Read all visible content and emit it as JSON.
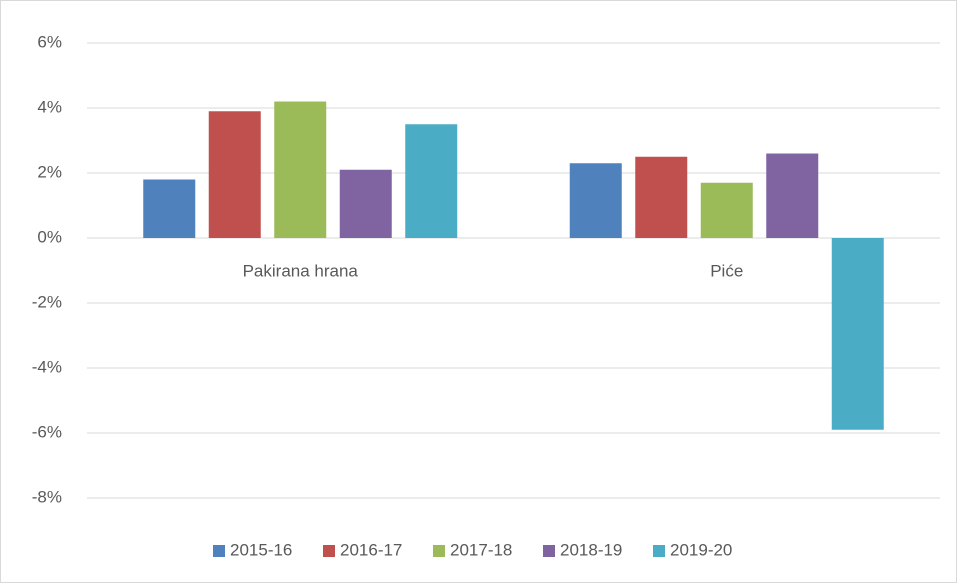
{
  "chart_data": {
    "type": "bar",
    "categories": [
      "Pakirana hrana",
      "Piće"
    ],
    "series": [
      {
        "name": "2015-16",
        "color": "#4f81bd",
        "values": [
          1.8,
          2.3
        ]
      },
      {
        "name": "2016-17",
        "color": "#c0504d",
        "values": [
          3.9,
          2.5
        ]
      },
      {
        "name": "2017-18",
        "color": "#9bbb59",
        "values": [
          4.2,
          1.7
        ]
      },
      {
        "name": "2018-19",
        "color": "#8064a2",
        "values": [
          2.1,
          2.6
        ]
      },
      {
        "name": "2019-20",
        "color": "#4bacc6",
        "values": [
          3.5,
          -5.9
        ]
      }
    ],
    "ylim": [
      -8,
      6
    ],
    "yticks": [
      {
        "value": -8,
        "label": "-8%"
      },
      {
        "value": -6,
        "label": "-6%"
      },
      {
        "value": -4,
        "label": "-4%"
      },
      {
        "value": -2,
        "label": "-2%"
      },
      {
        "value": 0,
        "label": "0%"
      },
      {
        "value": 2,
        "label": "2%"
      },
      {
        "value": 4,
        "label": "4%"
      },
      {
        "value": 6,
        "label": "6%"
      }
    ],
    "grid": true,
    "legend": "bottom"
  }
}
